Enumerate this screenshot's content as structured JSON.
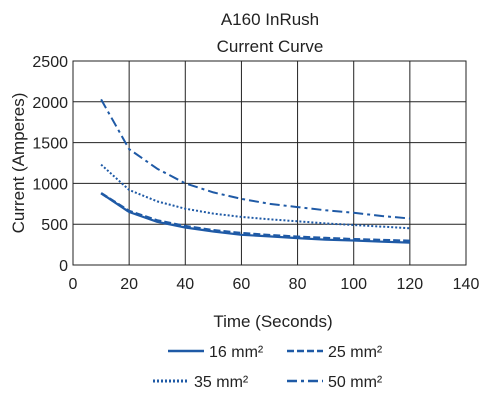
{
  "chart_data": {
    "type": "line",
    "title_lines": [
      "A160 InRush",
      "Current Curve"
    ],
    "xlabel": "Time (Seconds)",
    "ylabel": "Current (Amperes)",
    "xlim": [
      0,
      140
    ],
    "ylim": [
      0,
      2500
    ],
    "x_ticks": [
      0,
      20,
      40,
      60,
      80,
      100,
      120,
      140
    ],
    "y_ticks": [
      0,
      500,
      1000,
      1500,
      2000,
      2500
    ],
    "grid": true,
    "legend_position": "bottom",
    "line_color": "#1f5aa6",
    "series": [
      {
        "name": "16 mm²",
        "style": "solid",
        "x": [
          10,
          20,
          30,
          40,
          50,
          60,
          70,
          80,
          90,
          100,
          110,
          120
        ],
        "y": [
          880,
          650,
          530,
          460,
          410,
          370,
          350,
          330,
          310,
          300,
          285,
          275
        ]
      },
      {
        "name": "25 mm²",
        "style": "dashed",
        "x": [
          10,
          20,
          30,
          40,
          50,
          60,
          70,
          80,
          90,
          100,
          110,
          120
        ],
        "y": [
          880,
          660,
          545,
          475,
          425,
          390,
          365,
          345,
          330,
          315,
          305,
          295
        ]
      },
      {
        "name": "35 mm²",
        "style": "dotted",
        "x": [
          10,
          20,
          30,
          40,
          50,
          60,
          70,
          80,
          90,
          100,
          110,
          120
        ],
        "y": [
          1230,
          920,
          780,
          690,
          630,
          590,
          560,
          535,
          510,
          490,
          470,
          450
        ]
      },
      {
        "name": "50 mm²",
        "style": "dashdot",
        "x": [
          10,
          20,
          30,
          40,
          50,
          60,
          70,
          80,
          90,
          100,
          110,
          120
        ],
        "y": [
          2030,
          1420,
          1180,
          1000,
          890,
          810,
          750,
          710,
          670,
          640,
          600,
          570
        ]
      }
    ]
  }
}
